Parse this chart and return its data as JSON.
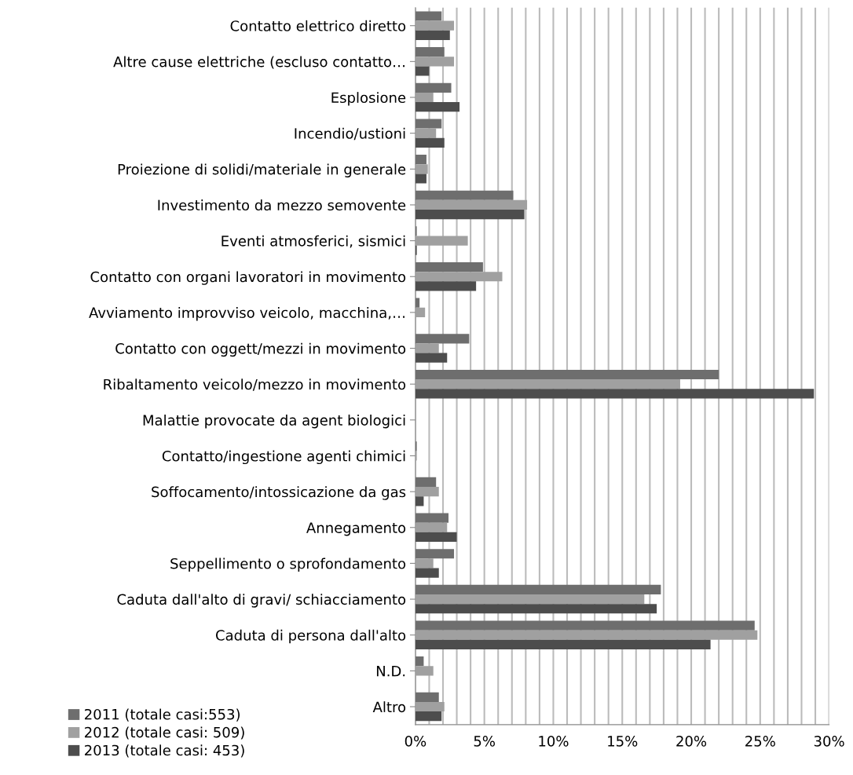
{
  "chart_data": {
    "type": "bar",
    "orientation": "horizontal",
    "categories": [
      "Contatto elettrico diretto",
      "Altre cause elettriche (escluso contatto…",
      "Esplosione",
      "Incendio/ustioni",
      "Proiezione di solidi/materiale in generale",
      "Investimento da mezzo semovente",
      "Eventi atmosferici, sismici",
      "Contatto con organi lavoratori in movimento",
      "Avviamento improvviso veicolo, macchina,…",
      "Contatto con oggett/mezzi in movimento",
      "Ribaltamento veicolo/mezzo in movimento",
      "Malattie provocate da agent biologici",
      "Contatto/ingestione agenti chimici",
      "Soffocamento/intossicazione da gas",
      "Annegamento",
      "Seppellimento o sprofondamento",
      "Caduta dall'alto di gravi/ schiacciamento",
      "Caduta di persona dall'alto",
      "N.D.",
      "Altro"
    ],
    "series": [
      {
        "name": "2011 (totale casi:553)",
        "color": "#6e6e6e",
        "values": [
          1.9,
          2.1,
          2.6,
          1.9,
          0.8,
          7.1,
          0.1,
          4.9,
          0.3,
          3.9,
          22.0,
          0,
          0.1,
          1.5,
          2.4,
          2.8,
          17.8,
          24.6,
          0.6,
          1.7
        ]
      },
      {
        "name": "2012 (totale casi: 509)",
        "color": "#a0a0a0",
        "values": [
          2.8,
          2.8,
          1.3,
          1.5,
          0.9,
          8.1,
          3.8,
          6.3,
          0.7,
          1.7,
          19.2,
          0,
          0.1,
          1.7,
          2.3,
          1.3,
          16.6,
          24.8,
          1.3,
          2.1
        ]
      },
      {
        "name": "2013 (totale casi: 453)",
        "color": "#4d4d4d",
        "values": [
          2.5,
          1.0,
          3.2,
          2.1,
          0.8,
          7.9,
          0.1,
          4.4,
          0,
          2.3,
          28.9,
          0,
          0,
          0.6,
          3.0,
          1.7,
          17.5,
          21.4,
          0,
          1.9
        ]
      }
    ],
    "xlim": [
      0,
      30
    ],
    "xticks": [
      {
        "value": 0,
        "label": "0%"
      },
      {
        "value": 1,
        "label": null
      },
      {
        "value": 2,
        "label": null
      },
      {
        "value": 3,
        "label": null
      },
      {
        "value": 4,
        "label": null
      },
      {
        "value": 5,
        "label": "5%"
      },
      {
        "value": 6,
        "label": null
      },
      {
        "value": 7,
        "label": null
      },
      {
        "value": 8,
        "label": null
      },
      {
        "value": 9,
        "label": null
      },
      {
        "value": 10,
        "label": "10%"
      },
      {
        "value": 11,
        "label": null
      },
      {
        "value": 12,
        "label": null
      },
      {
        "value": 13,
        "label": null
      },
      {
        "value": 14,
        "label": null
      },
      {
        "value": 15,
        "label": "15%"
      },
      {
        "value": 16,
        "label": null
      },
      {
        "value": 17,
        "label": null
      },
      {
        "value": 18,
        "label": null
      },
      {
        "value": 19,
        "label": null
      },
      {
        "value": 20,
        "label": "20%"
      },
      {
        "value": 21,
        "label": null
      },
      {
        "value": 22,
        "label": null
      },
      {
        "value": 23,
        "label": null
      },
      {
        "value": 24,
        "label": null
      },
      {
        "value": 25,
        "label": "25%"
      },
      {
        "value": 26,
        "label": null
      },
      {
        "value": 27,
        "label": null
      },
      {
        "value": 28,
        "label": null
      },
      {
        "value": 29,
        "label": null
      },
      {
        "value": 30,
        "label": "30%"
      }
    ],
    "grid": "x",
    "legend": "bottom left"
  }
}
